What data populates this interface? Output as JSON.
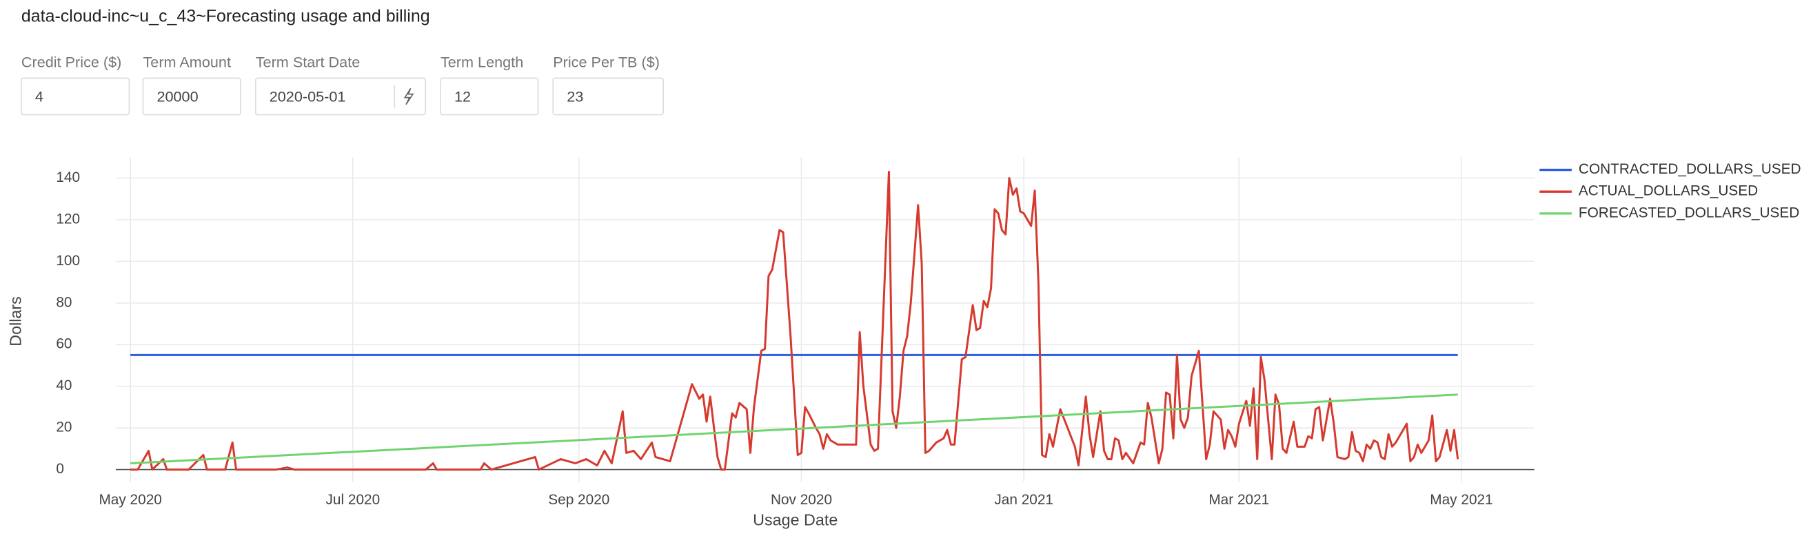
{
  "header": {
    "title": "data-cloud-inc~u_c_43~Forecasting usage and billing"
  },
  "inputs": [
    {
      "label": "Credit Price ($)",
      "value": "4"
    },
    {
      "label": "Term Amount",
      "value": "20000"
    },
    {
      "label": "Term Start Date",
      "value": "2020-05-01"
    },
    {
      "label": "Term Length",
      "value": "12"
    },
    {
      "label": "Price Per TB ($)",
      "value": "23"
    }
  ],
  "chart_data": {
    "type": "line",
    "x_label": "Usage Date",
    "y_label": "Dollars",
    "xlim": [
      "2020-04-27",
      "2021-05-21"
    ],
    "xticks": [
      {
        "value": "2020-05-01",
        "label": "May 2020"
      },
      {
        "value": "2020-07-01",
        "label": "Jul 2020"
      },
      {
        "value": "2020-09-01",
        "label": "Sep 2020"
      },
      {
        "value": "2020-11-01",
        "label": "Nov 2020"
      },
      {
        "value": "2021-01-01",
        "label": "Jan 2021"
      },
      {
        "value": "2021-03-01",
        "label": "Mar 2021"
      },
      {
        "value": "2021-05-01",
        "label": "May 2021"
      }
    ],
    "ylim": [
      -6,
      150
    ],
    "yticks": [
      0,
      20,
      40,
      60,
      80,
      100,
      120,
      140
    ],
    "grid": true,
    "legend": "right",
    "series": [
      {
        "name": "CONTRACTED_DOLLARS_USED",
        "color": "#2f5fe0",
        "x": [
          "2020-05-01",
          "2021-04-30"
        ],
        "values": [
          55,
          55
        ]
      },
      {
        "name": "ACTUAL_DOLLARS_USED",
        "color": "#d63a2f",
        "x": [
          "2020-05-01",
          "2020-05-03",
          "2020-05-06",
          "2020-05-07",
          "2020-05-10",
          "2020-05-11",
          "2020-05-17",
          "2020-05-21",
          "2020-05-22",
          "2020-05-27",
          "2020-05-29",
          "2020-05-30",
          "2020-06-10",
          "2020-06-13",
          "2020-06-15",
          "2020-06-30",
          "2020-07-21",
          "2020-07-23",
          "2020-07-24",
          "2020-08-05",
          "2020-08-06",
          "2020-08-08",
          "2020-08-20",
          "2020-08-21",
          "2020-08-27",
          "2020-08-31",
          "2020-09-03",
          "2020-09-06",
          "2020-09-08",
          "2020-09-10",
          "2020-09-13",
          "2020-09-14",
          "2020-09-16",
          "2020-09-18",
          "2020-09-21",
          "2020-09-22",
          "2020-09-26",
          "2020-10-02",
          "2020-10-04",
          "2020-10-05",
          "2020-10-06",
          "2020-10-07",
          "2020-10-09",
          "2020-10-10",
          "2020-10-11",
          "2020-10-13",
          "2020-10-14",
          "2020-10-15",
          "2020-10-17",
          "2020-10-18",
          "2020-10-19",
          "2020-10-21",
          "2020-10-22",
          "2020-10-23",
          "2020-10-24",
          "2020-10-26",
          "2020-10-27",
          "2020-10-29",
          "2020-10-31",
          "2020-11-01",
          "2020-11-02",
          "2020-11-03",
          "2020-11-05",
          "2020-11-06",
          "2020-11-07",
          "2020-11-08",
          "2020-11-09",
          "2020-11-11",
          "2020-11-13",
          "2020-11-16",
          "2020-11-17",
          "2020-11-18",
          "2020-11-20",
          "2020-11-21",
          "2020-11-22",
          "2020-11-25",
          "2020-11-26",
          "2020-11-27",
          "2020-11-28",
          "2020-11-29",
          "2020-11-30",
          "2020-12-01",
          "2020-12-03",
          "2020-12-04",
          "2020-12-05",
          "2020-12-06",
          "2020-12-08",
          "2020-12-10",
          "2020-12-11",
          "2020-12-12",
          "2020-12-13",
          "2020-12-15",
          "2020-12-16",
          "2020-12-18",
          "2020-12-19",
          "2020-12-20",
          "2020-12-21",
          "2020-12-22",
          "2020-12-23",
          "2020-12-24",
          "2020-12-25",
          "2020-12-26",
          "2020-12-27",
          "2020-12-28",
          "2020-12-29",
          "2020-12-30",
          "2020-12-31",
          "2021-01-01",
          "2021-01-03",
          "2021-01-04",
          "2021-01-05",
          "2021-01-06",
          "2021-01-07",
          "2021-01-08",
          "2021-01-09",
          "2021-01-11",
          "2021-01-13",
          "2021-01-15",
          "2021-01-16",
          "2021-01-18",
          "2021-01-19",
          "2021-01-20",
          "2021-01-22",
          "2021-01-23",
          "2021-01-24",
          "2021-01-25",
          "2021-01-26",
          "2021-01-27",
          "2021-01-28",
          "2021-01-29",
          "2021-01-31",
          "2021-02-02",
          "2021-02-03",
          "2021-02-04",
          "2021-02-05",
          "2021-02-07",
          "2021-02-08",
          "2021-02-09",
          "2021-02-10",
          "2021-02-11",
          "2021-02-12",
          "2021-02-13",
          "2021-02-14",
          "2021-02-15",
          "2021-02-16",
          "2021-02-18",
          "2021-02-20",
          "2021-02-21",
          "2021-02-22",
          "2021-02-24",
          "2021-02-25",
          "2021-02-26",
          "2021-02-27",
          "2021-02-28",
          "2021-03-01",
          "2021-03-03",
          "2021-03-04",
          "2021-03-05",
          "2021-03-06",
          "2021-03-07",
          "2021-03-08",
          "2021-03-10",
          "2021-03-11",
          "2021-03-12",
          "2021-03-13",
          "2021-03-14",
          "2021-03-16",
          "2021-03-17",
          "2021-03-19",
          "2021-03-20",
          "2021-03-21",
          "2021-03-22",
          "2021-03-23",
          "2021-03-24",
          "2021-03-26",
          "2021-03-27",
          "2021-03-28",
          "2021-03-30",
          "2021-03-31",
          "2021-04-01",
          "2021-04-02",
          "2021-04-03",
          "2021-04-04",
          "2021-04-05",
          "2021-04-06",
          "2021-04-07",
          "2021-04-08",
          "2021-04-09",
          "2021-04-10",
          "2021-04-11",
          "2021-04-12",
          "2021-04-13",
          "2021-04-16",
          "2021-04-17",
          "2021-04-18",
          "2021-04-19",
          "2021-04-20",
          "2021-04-22",
          "2021-04-23",
          "2021-04-24",
          "2021-04-25",
          "2021-04-27",
          "2021-04-28",
          "2021-04-29",
          "2021-04-30"
        ],
        "values": [
          0,
          0,
          9,
          0,
          5,
          0,
          0,
          7,
          0,
          0,
          13,
          0,
          0,
          1,
          0,
          0,
          0,
          3,
          0,
          0,
          3,
          0,
          6,
          0,
          5,
          3,
          5,
          2,
          9,
          3,
          28,
          8,
          9,
          5,
          13,
          6,
          4,
          41,
          34,
          36,
          23,
          35,
          6,
          0,
          0,
          27,
          25,
          32,
          29,
          8,
          30,
          57,
          58,
          93,
          96,
          115,
          114,
          65,
          7,
          8,
          30,
          27,
          20,
          17,
          10,
          17,
          14,
          12,
          12,
          12,
          66,
          40,
          12,
          9,
          10,
          143,
          28,
          20,
          35,
          57,
          64,
          80,
          127,
          99,
          8,
          9,
          13,
          15,
          19,
          12,
          12,
          53,
          54,
          79,
          67,
          68,
          81,
          78,
          87,
          125,
          123,
          115,
          113,
          140,
          132,
          135,
          124,
          123,
          117,
          134,
          90,
          7,
          6,
          17,
          11,
          29,
          20,
          11,
          2,
          35,
          17,
          6,
          28,
          9,
          5,
          5,
          15,
          14,
          5,
          8,
          3,
          13,
          12,
          32,
          25,
          3,
          10,
          37,
          36,
          15,
          55,
          24,
          20,
          25,
          45,
          57,
          5,
          12,
          28,
          24,
          10,
          19,
          16,
          11,
          22,
          33,
          21,
          39,
          5,
          54,
          43,
          5,
          36,
          31,
          10,
          8,
          23,
          11,
          11,
          16,
          15,
          29,
          30,
          14,
          34,
          22,
          6,
          5,
          6,
          18,
          9,
          8,
          4,
          12,
          10,
          14,
          13,
          6,
          5,
          17,
          11,
          13,
          22,
          4,
          6,
          12,
          8,
          14,
          26,
          4,
          6,
          19,
          9,
          19,
          5
        ]
      },
      {
        "name": "FORECASTED_DOLLARS_USED",
        "color": "#6fd46f",
        "x": [
          "2020-05-01",
          "2021-04-30"
        ],
        "values": [
          3,
          36
        ]
      }
    ]
  }
}
